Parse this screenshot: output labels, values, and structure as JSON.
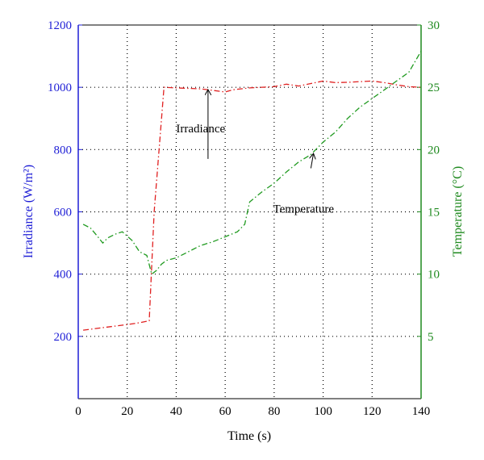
{
  "chart_data": {
    "type": "line",
    "grid": true,
    "xlabel": "Time (s)",
    "ylabel_left": "Irradiance (W/m²)",
    "ylabel_right": "Temperature (°C)",
    "xlim": [
      0,
      140
    ],
    "ylim_left": [
      0,
      1200
    ],
    "ylim_right": [
      0,
      30
    ],
    "x_ticks": [
      "0",
      "20",
      "40",
      "60",
      "80",
      "100",
      "120",
      "140"
    ],
    "y_left_ticks": [
      "200",
      "400",
      "600",
      "800",
      "1000",
      "1200"
    ],
    "y_right_ticks": [
      "5",
      "10",
      "15",
      "20",
      "25",
      "30"
    ],
    "colors": {
      "left_axis": "#1f1fd6",
      "right_axis": "#1f8a1f",
      "irradiance": "#e02020",
      "temperature": "#1f9a1f"
    },
    "series": [
      {
        "name": "Irradiance",
        "axis": "left",
        "color": "#e02020",
        "x": [
          2,
          10,
          20,
          25,
          29,
          31,
          35,
          40,
          50,
          55,
          60,
          63,
          70,
          80,
          85,
          90,
          95,
          100,
          105,
          110,
          115,
          120,
          125,
          130,
          135,
          140
        ],
        "y": [
          220,
          228,
          238,
          244,
          250,
          600,
          1000,
          998,
          995,
          990,
          985,
          992,
          998,
          1002,
          1010,
          1004,
          1012,
          1020,
          1015,
          1016,
          1018,
          1020,
          1015,
          1008,
          1002,
          1000
        ]
      },
      {
        "name": "Temperature",
        "axis": "right",
        "color": "#1f9a1f",
        "x": [
          2,
          5,
          8,
          10,
          12,
          15,
          18,
          22,
          25,
          28,
          30,
          32,
          34,
          36,
          40,
          45,
          50,
          55,
          60,
          65,
          68,
          70,
          75,
          80,
          85,
          90,
          95,
          100,
          105,
          110,
          115,
          120,
          125,
          130,
          135,
          140
        ],
        "y": [
          14,
          13.7,
          13.0,
          12.5,
          12.9,
          13.2,
          13.4,
          12.7,
          11.8,
          11.5,
          10.0,
          10.3,
          10.8,
          11.1,
          11.3,
          11.8,
          12.3,
          12.6,
          13.0,
          13.4,
          14.0,
          15.8,
          16.6,
          17.3,
          18.2,
          19.0,
          19.6,
          20.6,
          21.4,
          22.5,
          23.4,
          24.1,
          24.8,
          25.5,
          26.2,
          27.9
        ]
      }
    ],
    "annotations": [
      {
        "text": "Irradiance",
        "x": 53,
        "y_left": 770,
        "arrow_to_x": 53,
        "arrow_to_y_left": 990,
        "text_x": 50,
        "text_y_left": 868
      },
      {
        "text": "Temperature",
        "x": 95,
        "y_left": 740,
        "arrow_to_x": 96,
        "arrow_to_y_left": 785,
        "text_x": 92,
        "text_y_left": 610
      }
    ]
  }
}
